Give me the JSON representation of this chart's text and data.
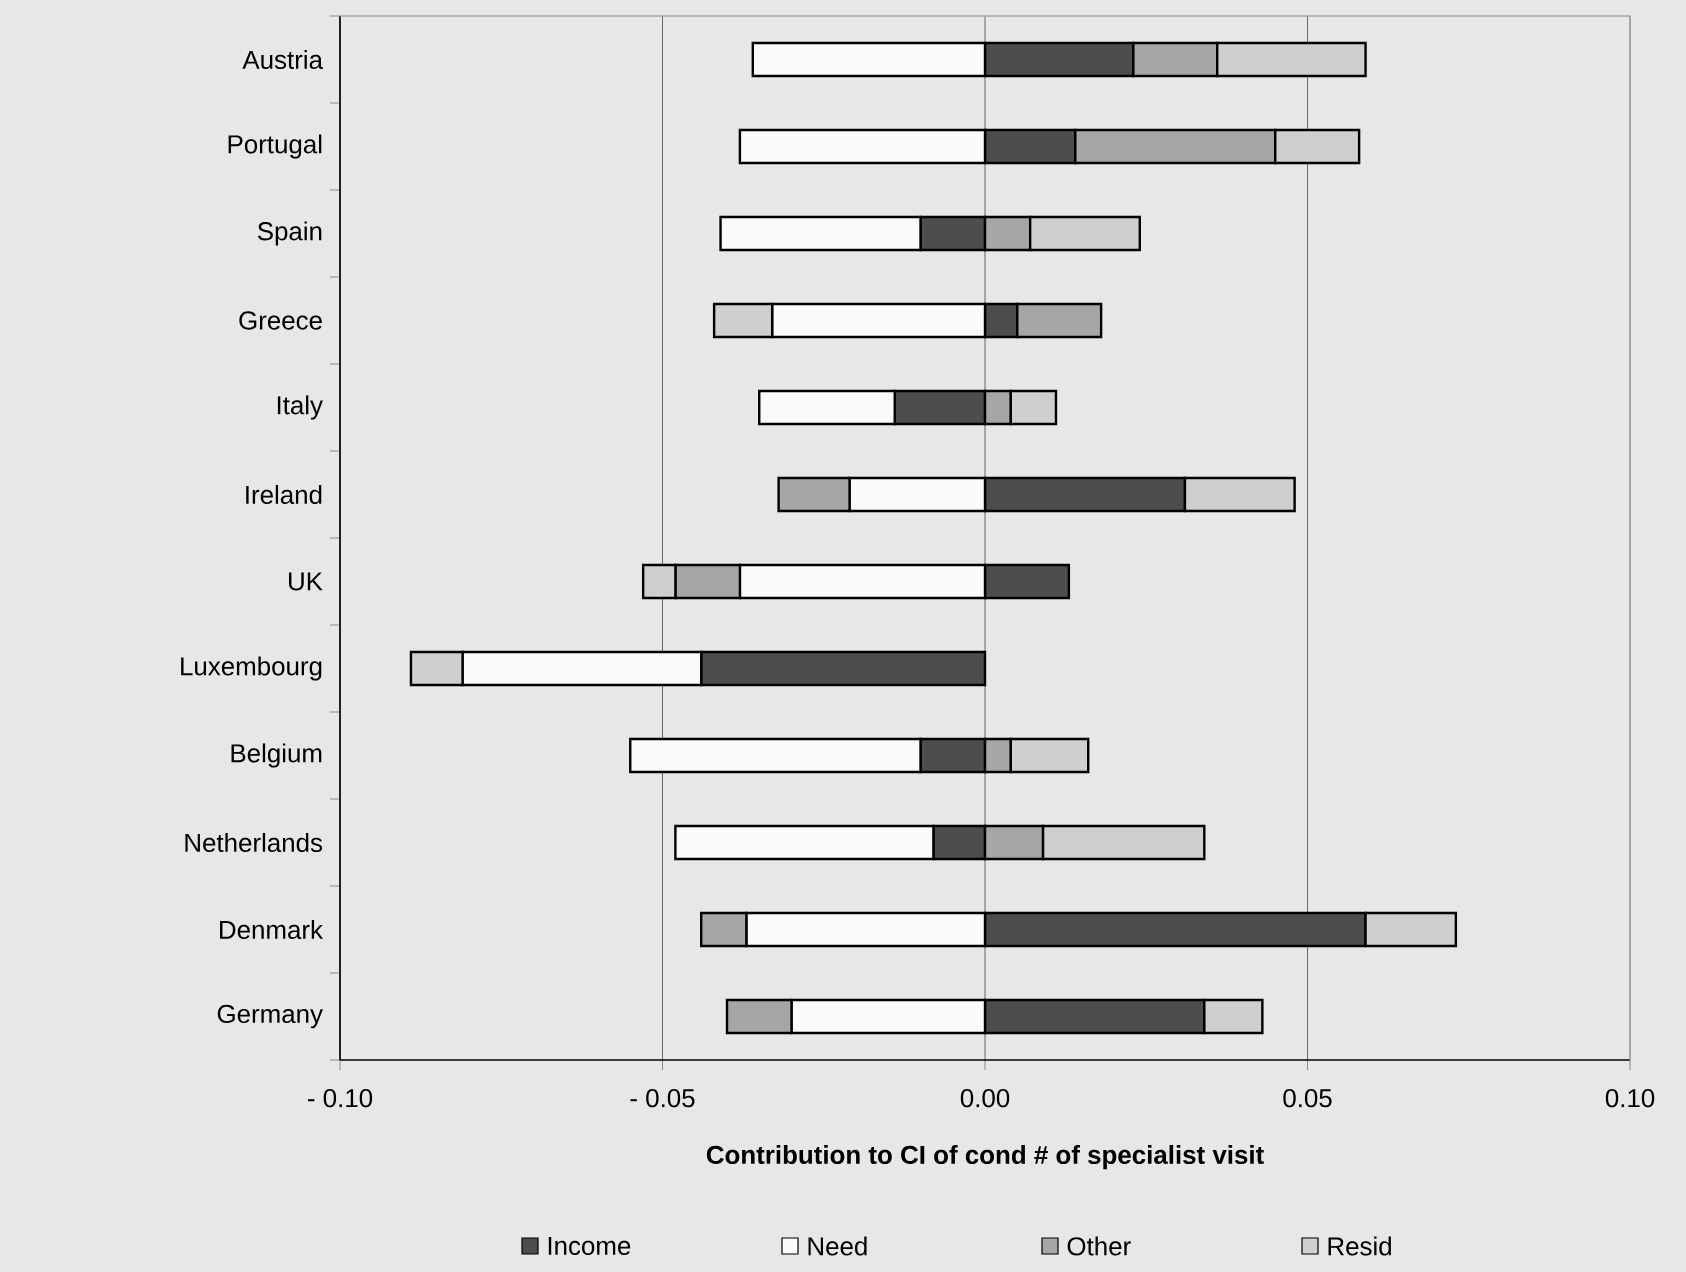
{
  "chart_data": {
    "type": "bar",
    "orientation": "horizontal",
    "stacked": true,
    "categories": [
      "Austria",
      "Portugal",
      "Spain",
      "Greece",
      "Italy",
      "Ireland",
      "UK",
      "Luxembourg",
      "Belgium",
      "Netherlands",
      "Denmark",
      "Germany"
    ],
    "series": [
      {
        "name": "Income",
        "color": "#4d4d4d",
        "values": [
          0.023,
          0.014,
          -0.01,
          0.005,
          -0.014,
          0.031,
          0.013,
          -0.044,
          -0.01,
          -0.008,
          0.059,
          0.034
        ]
      },
      {
        "name": "Need",
        "color": "#fafafa",
        "values": [
          -0.036,
          -0.038,
          -0.031,
          -0.033,
          -0.021,
          -0.021,
          -0.038,
          -0.037,
          -0.045,
          -0.04,
          -0.037,
          -0.03
        ]
      },
      {
        "name": "Other",
        "color": "#a6a6a6",
        "values": [
          0.013,
          0.031,
          0.007,
          0.013,
          0.004,
          -0.011,
          -0.01,
          0,
          0.004,
          0.009,
          -0.007,
          -0.01
        ]
      },
      {
        "name": "Resid",
        "color": "#cfcfcf",
        "values": [
          0.023,
          0.013,
          0.017,
          -0.009,
          0.007,
          0.017,
          -0.005,
          -0.008,
          0.012,
          0.025,
          0.014,
          0.009
        ]
      }
    ],
    "xlim": [
      -0.1,
      0.1
    ],
    "xticks": [
      {
        "value": -0.1,
        "label": "- 0.10"
      },
      {
        "value": -0.05,
        "label": "- 0.05"
      },
      {
        "value": 0,
        "label": "0.00"
      },
      {
        "value": 0.05,
        "label": "0.05"
      },
      {
        "value": 0.1,
        "label": "0.10"
      }
    ],
    "xlabel": "Contribution to CI of cond # of specialist visit",
    "grid": "x",
    "legend": "bottom"
  }
}
